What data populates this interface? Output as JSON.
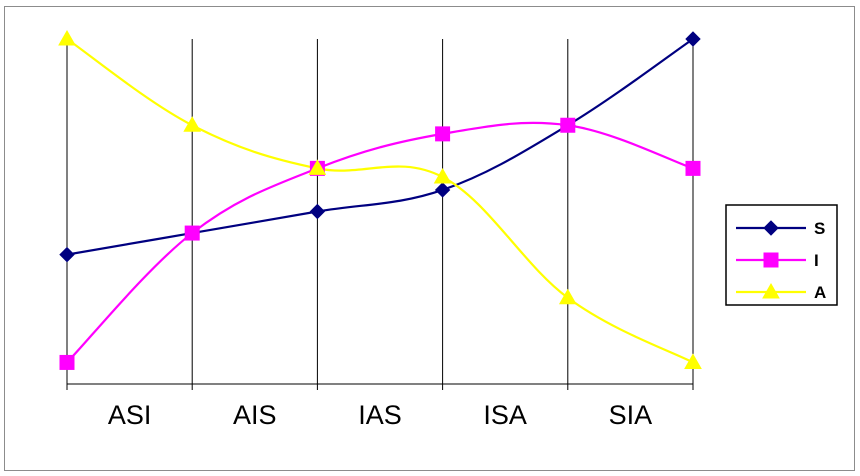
{
  "chart_data": {
    "type": "line",
    "categories": [
      "ASI",
      "AIS",
      "IAS",
      "ISA",
      "SIA",
      ""
    ],
    "series": [
      {
        "name": "S",
        "color": "#000080",
        "marker": "diamond",
        "values": [
          3.0,
          3.5,
          4.0,
          4.5,
          6.0,
          8.0
        ]
      },
      {
        "name": "I",
        "color": "#ff00ff",
        "marker": "square",
        "values": [
          0.5,
          3.5,
          5.0,
          5.8,
          6.0,
          5.0
        ]
      },
      {
        "name": "A",
        "color": "#ffff00",
        "marker": "triangle",
        "values": [
          8.0,
          6.0,
          5.0,
          4.8,
          2.0,
          0.5
        ]
      }
    ],
    "ylim": [
      0,
      8
    ],
    "grid": "vertical lines at categories",
    "legend_position": "right",
    "title": "",
    "xlabel": "",
    "ylabel": ""
  }
}
